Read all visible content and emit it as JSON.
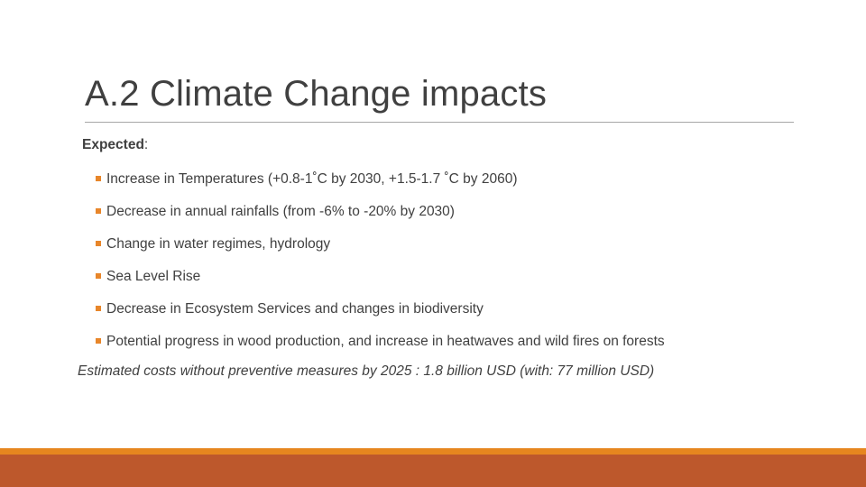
{
  "slide": {
    "title": "A.2  Climate Change impacts",
    "heading_label": "Expected",
    "heading_colon": ":",
    "bullets": [
      "Increase in Temperatures (+0.8-1˚C by 2030, +1.5-1.7 ˚C by 2060)",
      "Decrease in annual rainfalls (from -6% to -20% by 2030)",
      "Change in water regimes, hydrology",
      "Sea Level Rise",
      "Decrease in Ecosystem Services and changes in biodiversity",
      "Potential progress in wood production, and increase in heatwaves and wild fires on forests"
    ],
    "note": "Estimated costs without preventive measures by 2025 : 1.8 billion USD (with: 77 million USD)"
  },
  "colors": {
    "accent": "#e6861f",
    "footer": "#bd582c",
    "text": "#404040"
  },
  "icons": {
    "bullet": "square-bullet-icon"
  }
}
